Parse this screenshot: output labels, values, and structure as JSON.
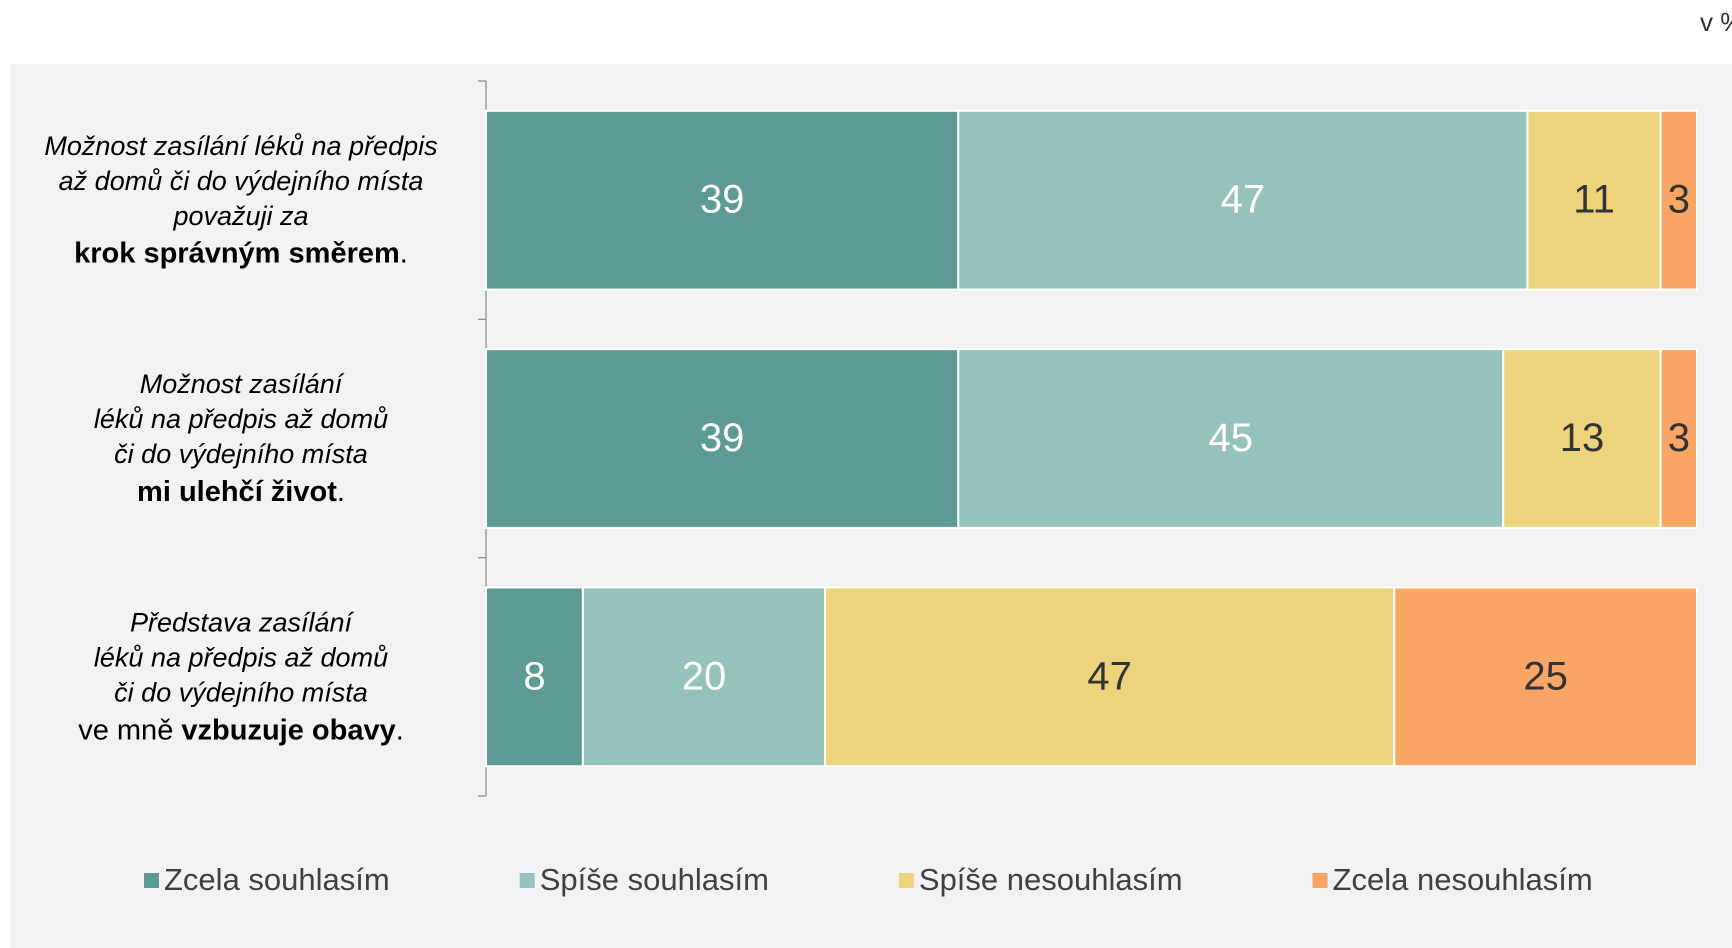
{
  "chart_data": {
    "type": "stacked_barh",
    "unit_note": "v %",
    "categories": [
      {
        "lines": [
          "Možnost zasílání léků na předpis",
          "až domů či do výdejního místa",
          "považuji za"
        ],
        "ending": [
          {
            "text": "krok správným směrem",
            "bold": true
          },
          {
            "text": "."
          }
        ]
      },
      {
        "lines": [
          "Možnost zasílání",
          "léků na předpis až domů",
          "či do výdejního místa"
        ],
        "ending": [
          {
            "text": "mi ulehčí život",
            "bold": true
          },
          {
            "text": "."
          }
        ]
      },
      {
        "lines": [
          "Představa zasílání",
          "léků na předpis až domů",
          "či do výdejního místa"
        ],
        "ending": [
          {
            "text": "ve mně "
          },
          {
            "text": "vzbuzuje obavy",
            "bold": true
          },
          {
            "text": "."
          }
        ]
      }
    ],
    "series": [
      {
        "name": "Zcela souhlasím",
        "color": "#5c9a93",
        "label_color": "#ffffff",
        "values": [
          39,
          39,
          8
        ]
      },
      {
        "name": "Spíše souhlasím",
        "color": "#96c2bc",
        "label_color": "#ffffff",
        "values": [
          47,
          45,
          20
        ]
      },
      {
        "name": "Spíše nesouhlasím",
        "color": "#ecd37c",
        "label_color": "#333333",
        "values": [
          11,
          13,
          47
        ]
      },
      {
        "name": "Zcela nesouhlasím",
        "color": "#f9a566",
        "label_color": "#333333",
        "values": [
          3,
          3,
          25
        ]
      }
    ],
    "xlim": [
      0,
      100
    ],
    "legend": "bottom"
  }
}
